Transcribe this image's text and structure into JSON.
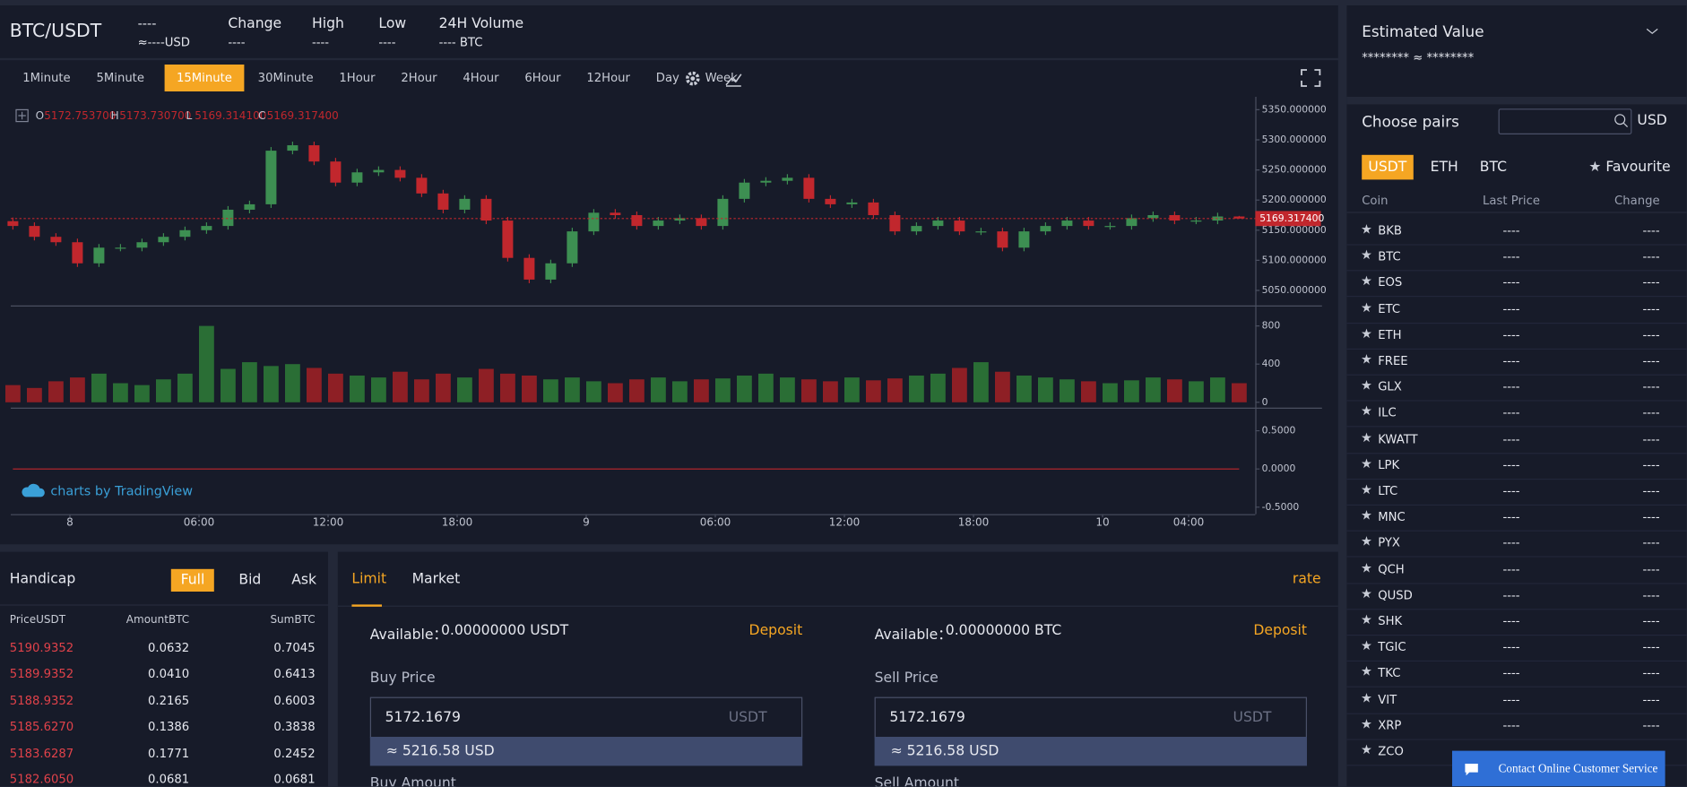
{
  "header": {
    "pair": "BTC/USDT",
    "price": "----",
    "price_usd": "≈----USD",
    "stats": [
      {
        "label": "Change",
        "value": "----"
      },
      {
        "label": "High",
        "value": "----"
      },
      {
        "label": "Low",
        "value": "----"
      },
      {
        "label": "24H Volume",
        "value": "---- BTC"
      }
    ]
  },
  "toolbar": {
    "intervals": [
      "1Minute",
      "5Minute",
      "15Minute",
      "30Minute",
      "1Hour",
      "2Hour",
      "4Hour",
      "6Hour",
      "12Hour",
      "Day",
      "Week"
    ],
    "active": 2
  },
  "chart_data": [
    {
      "type": "candlestick",
      "legend": [
        {
          "label": "O",
          "value": "5172.753700"
        },
        {
          "label": "H",
          "value": "5173.730700"
        },
        {
          "label": "L",
          "value": "5169.314100"
        },
        {
          "label": "C",
          "value": "5169.317400"
        }
      ],
      "open": [
        5165,
        5157,
        5139,
        5130,
        5095,
        5121,
        5121,
        5130,
        5139,
        5150,
        5157,
        5184,
        5193,
        5282,
        5291,
        5264,
        5229,
        5246,
        5250,
        5237,
        5211,
        5184,
        5202,
        5166,
        5104,
        5068,
        5095,
        5148,
        5179,
        5175,
        5157,
        5166,
        5170,
        5157,
        5202,
        5229,
        5232,
        5237,
        5202,
        5193,
        5196,
        5175,
        5148,
        5157,
        5166,
        5148,
        5148,
        5121,
        5148,
        5157,
        5166,
        5157,
        5157,
        5170,
        5175,
        5166,
        5166,
        5172.7537
      ],
      "high": [
        5171,
        5163,
        5145,
        5136,
        5127,
        5127,
        5136,
        5145,
        5156,
        5163,
        5190,
        5199,
        5288,
        5297,
        5297,
        5270,
        5252,
        5256,
        5256,
        5243,
        5217,
        5208,
        5208,
        5172,
        5110,
        5101,
        5154,
        5185,
        5185,
        5181,
        5172,
        5176,
        5176,
        5208,
        5235,
        5238,
        5243,
        5243,
        5208,
        5202,
        5202,
        5181,
        5163,
        5172,
        5172,
        5154,
        5154,
        5154,
        5163,
        5172,
        5172,
        5163,
        5176,
        5181,
        5181,
        5172,
        5179,
        5173.7307
      ],
      "low": [
        5151,
        5133,
        5124,
        5089,
        5089,
        5115,
        5115,
        5124,
        5133,
        5144,
        5151,
        5178,
        5187,
        5276,
        5258,
        5223,
        5223,
        5240,
        5231,
        5205,
        5178,
        5178,
        5160,
        5098,
        5062,
        5062,
        5089,
        5142,
        5169,
        5151,
        5151,
        5160,
        5151,
        5151,
        5196,
        5223,
        5226,
        5196,
        5187,
        5187,
        5169,
        5142,
        5142,
        5151,
        5142,
        5142,
        5115,
        5115,
        5142,
        5151,
        5151,
        5151,
        5151,
        5164,
        5160,
        5160,
        5160,
        5169.3141
      ],
      "close": [
        5157,
        5139,
        5130,
        5095,
        5121,
        5121,
        5130,
        5139,
        5150,
        5157,
        5184,
        5193,
        5282,
        5291,
        5264,
        5229,
        5246,
        5250,
        5237,
        5211,
        5184,
        5202,
        5166,
        5104,
        5068,
        5095,
        5148,
        5179,
        5175,
        5157,
        5166,
        5170,
        5157,
        5202,
        5229,
        5232,
        5237,
        5202,
        5193,
        5196,
        5175,
        5148,
        5157,
        5166,
        5148,
        5148,
        5121,
        5148,
        5157,
        5166,
        5157,
        5157,
        5170,
        5175,
        5166,
        5166,
        5172.7537,
        5169.3174
      ],
      "up_color": "#3d8f52",
      "down_color": "#c1272d",
      "ylim": [
        5025,
        5370
      ],
      "yticks": [
        {
          "value": 5050,
          "label": "5050.000000"
        },
        {
          "value": 5100,
          "label": "5100.000000"
        },
        {
          "value": 5150,
          "label": "5150.000000"
        },
        {
          "value": 5200,
          "label": "5200.000000"
        },
        {
          "value": 5250,
          "label": "5250.000000"
        },
        {
          "value": 5300,
          "label": "5300.000000"
        },
        {
          "value": 5350,
          "label": "5350.000000"
        }
      ],
      "last_price": {
        "value": 5169.3174,
        "label": "5169.317400"
      },
      "xlim": [
        -0.1,
        57.75
      ],
      "xticks": [
        {
          "value": 2.65,
          "label": "8"
        },
        {
          "value": 8.65,
          "label": "06:00"
        },
        {
          "value": 14.65,
          "label": "12:00"
        },
        {
          "value": 20.65,
          "label": "18:00"
        },
        {
          "value": 26.65,
          "label": "9"
        },
        {
          "value": 32.65,
          "label": "06:00"
        },
        {
          "value": 38.65,
          "label": "12:00"
        },
        {
          "value": 44.65,
          "label": "18:00"
        },
        {
          "value": 50.65,
          "label": "10"
        },
        {
          "value": 54.65,
          "label": "04:00"
        }
      ]
    },
    {
      "type": "bar",
      "values": [
        180,
        150,
        220,
        260,
        300,
        200,
        180,
        240,
        300,
        800,
        350,
        420,
        380,
        400,
        360,
        300,
        280,
        260,
        320,
        240,
        300,
        260,
        350,
        300,
        280,
        240,
        260,
        220,
        200,
        240,
        260,
        220,
        240,
        250,
        280,
        300,
        260,
        240,
        220,
        260,
        230,
        250,
        280,
        300,
        360,
        420,
        320,
        280,
        260,
        240,
        220,
        200,
        230,
        260,
        240,
        220,
        260,
        200
      ],
      "up_color": "#2a6e35",
      "down_color": "#8e1f25",
      "ylim": [
        0,
        950
      ],
      "yticks": [
        0,
        400,
        800
      ]
    },
    {
      "type": "line",
      "values": [
        0,
        0,
        0,
        0,
        0,
        0,
        0,
        0,
        0,
        0,
        0,
        0,
        0,
        0,
        0,
        0,
        0,
        0,
        0,
        0,
        0,
        0,
        0,
        0,
        0,
        0,
        0,
        0,
        0,
        0,
        0,
        0,
        0,
        0,
        0,
        0,
        0,
        0,
        0,
        0,
        0,
        0,
        0,
        0,
        0,
        0,
        0,
        0,
        0,
        0,
        0,
        0,
        0,
        0,
        0,
        0,
        0,
        0
      ],
      "color": "#c1272d",
      "ylim": [
        -0.6,
        0.78
      ],
      "yticks": [
        {
          "value": 0.5,
          "label": "0.5000"
        },
        {
          "value": 0,
          "label": "0.0000"
        },
        {
          "value": -0.5,
          "label": "-0.5000"
        }
      ]
    }
  ],
  "watermark": "charts by TradingView",
  "estimated": {
    "title": "Estimated Value",
    "value": "******** ≈ ********"
  },
  "pairs": {
    "title": "Choose pairs",
    "currency": "USD",
    "tabs": [
      "USDT",
      "ETH",
      "BTC"
    ],
    "active": 0,
    "favourite": "Favourite",
    "columns": [
      "Coin",
      "Last Price",
      "Change"
    ],
    "rows": [
      [
        "BKB",
        "----",
        "----"
      ],
      [
        "BTC",
        "----",
        "----"
      ],
      [
        "EOS",
        "----",
        "----"
      ],
      [
        "ETC",
        "----",
        "----"
      ],
      [
        "ETH",
        "----",
        "----"
      ],
      [
        "FREE",
        "----",
        "----"
      ],
      [
        "GLX",
        "----",
        "----"
      ],
      [
        "ILC",
        "----",
        "----"
      ],
      [
        "KWATT",
        "----",
        "----"
      ],
      [
        "LPK",
        "----",
        "----"
      ],
      [
        "LTC",
        "----",
        "----"
      ],
      [
        "MNC",
        "----",
        "----"
      ],
      [
        "PYX",
        "----",
        "----"
      ],
      [
        "QCH",
        "----",
        "----"
      ],
      [
        "QUSD",
        "----",
        "----"
      ],
      [
        "SHK",
        "----",
        "----"
      ],
      [
        "TGIC",
        "----",
        "----"
      ],
      [
        "TKC",
        "----",
        "----"
      ],
      [
        "VIT",
        "----",
        "----"
      ],
      [
        "XRP",
        "----",
        "----"
      ],
      [
        "ZCO",
        "----",
        "----"
      ]
    ]
  },
  "handicap": {
    "title": "Handicap",
    "tabs": [
      "Full",
      "Bid",
      "Ask"
    ],
    "active": 0,
    "columns": [
      "PriceUSDT",
      "AmountBTC",
      "SumBTC"
    ],
    "rows": [
      [
        "5190.9352",
        "0.0632",
        "0.7045"
      ],
      [
        "5189.9352",
        "0.0410",
        "0.6413"
      ],
      [
        "5188.9352",
        "0.2165",
        "0.6003"
      ],
      [
        "5185.6270",
        "0.1386",
        "0.3838"
      ],
      [
        "5183.6287",
        "0.1771",
        "0.2452"
      ],
      [
        "5182.6050",
        "0.0681",
        "0.0681"
      ]
    ]
  },
  "trade": {
    "tabs": [
      "Limit",
      "Market"
    ],
    "active": 0,
    "rate": "rate",
    "buy": {
      "available_label": "Available：",
      "available": "0.00000000 USDT",
      "deposit": "Deposit",
      "price_label": "Buy Price",
      "price": "5172.1679",
      "unit": "USDT",
      "approx": "≈ 5216.58 USD",
      "amount_label": "Buy Amount"
    },
    "sell": {
      "available_label": "Available：",
      "available": "0.00000000 BTC",
      "deposit": "Deposit",
      "price_label": "Sell Price",
      "price": "5172.1679",
      "unit": "USDT",
      "approx": "≈ 5216.58 USD",
      "amount_label": "Sell Amount"
    }
  },
  "support": "Contact Online Customer Service"
}
